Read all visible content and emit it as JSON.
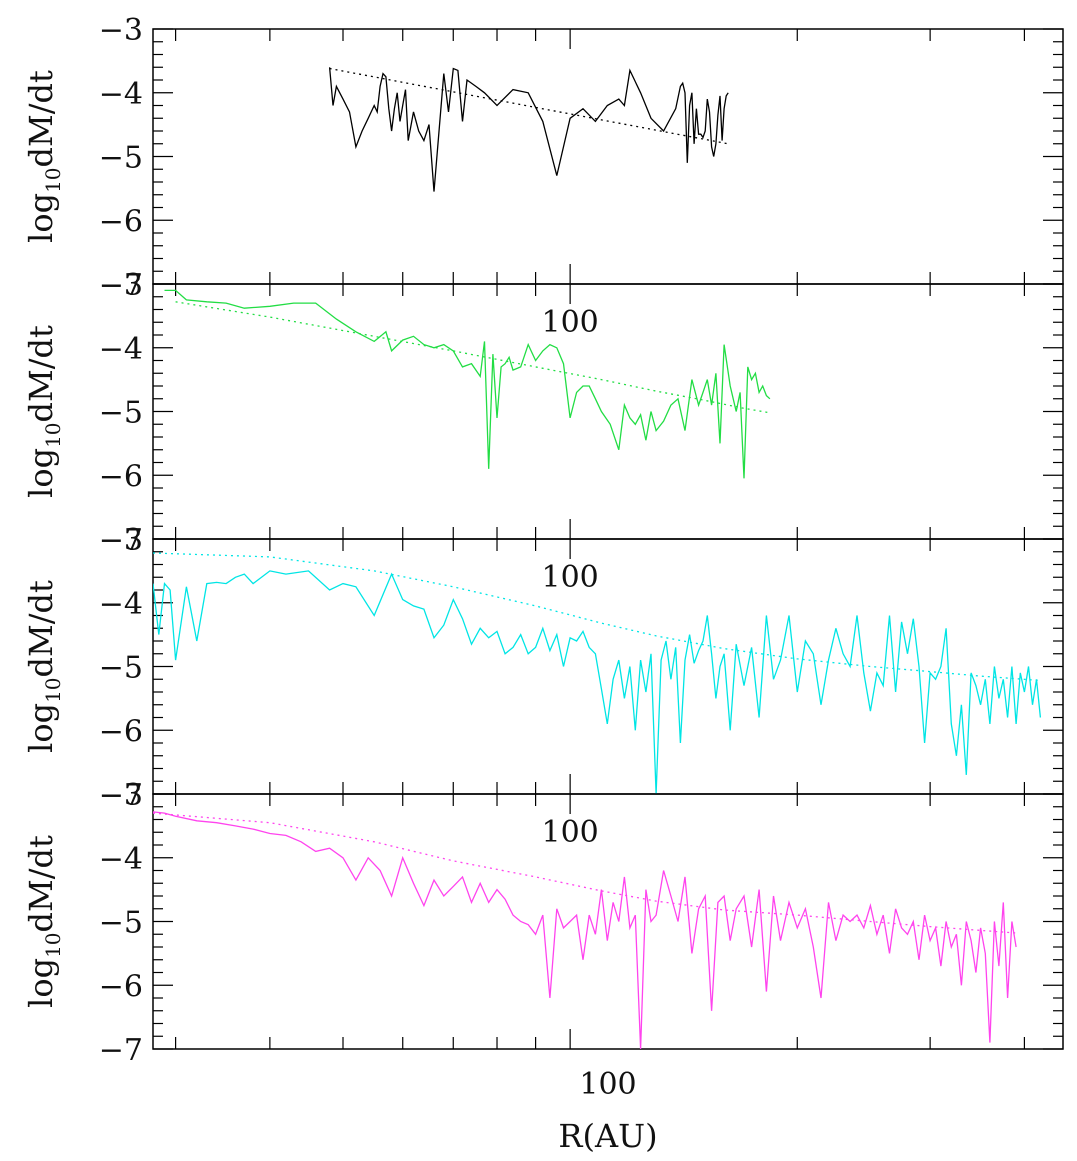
{
  "chart_data": {
    "type": "line",
    "layout": "4 stacked panels sharing a logarithmic x axis",
    "x_scale": "log",
    "xlim": [
      28,
      450
    ],
    "xlabel": "R(AU)",
    "x_tick_label": "100",
    "ylim": [
      -7,
      -3
    ],
    "y_ticks": [
      "−3",
      "−4",
      "−5",
      "−6",
      "−7"
    ],
    "ylabel": "log10dM/dt",
    "ylabel_parts": {
      "main": "log",
      "sub": "10",
      "rest": "dM/dt"
    },
    "panels": [
      {
        "color": "#000000",
        "data": {
          "x": [
            48,
            48.5,
            49,
            50,
            51,
            52,
            53,
            54,
            55,
            55.5,
            56,
            56.5,
            57,
            57.5,
            58,
            58.5,
            59,
            59.5,
            60,
            60.5,
            61,
            62,
            63,
            64,
            65,
            66,
            68,
            69,
            70,
            71,
            72,
            73,
            75,
            77,
            80,
            84,
            88,
            92,
            96,
            100,
            104,
            108,
            112,
            116,
            118,
            120,
            124,
            128,
            133,
            138,
            140,
            141,
            142,
            143,
            144,
            145,
            146,
            147,
            148,
            149,
            150,
            151,
            152,
            153,
            154,
            155,
            156,
            157,
            158,
            159,
            160,
            161,
            162
          ],
          "y": [
            -3.6,
            -4.2,
            -3.9,
            -4.1,
            -4.3,
            -4.85,
            -4.6,
            -4.4,
            -4.2,
            -4.3,
            -3.9,
            -3.7,
            -3.75,
            -4.25,
            -4.6,
            -4.25,
            -4.0,
            -4.45,
            -4.2,
            -3.95,
            -4.75,
            -4.3,
            -4.6,
            -4.75,
            -4.5,
            -5.55,
            -3.7,
            -4.3,
            -3.62,
            -3.65,
            -4.45,
            -3.8,
            -3.9,
            -4.0,
            -4.2,
            -3.95,
            -4.0,
            -4.45,
            -5.3,
            -4.4,
            -4.25,
            -4.45,
            -4.2,
            -4.1,
            -4.2,
            -3.65,
            -4.0,
            -4.4,
            -4.6,
            -4.25,
            -3.9,
            -3.85,
            -4.0,
            -5.1,
            -4.2,
            -4.0,
            -4.8,
            -4.25,
            -4.65,
            -4.65,
            -4.7,
            -4.6,
            -4.1,
            -4.3,
            -4.85,
            -5.0,
            -4.8,
            -4.35,
            -4.05,
            -4.75,
            -4.25,
            -4.05,
            -4.0
          ]
        },
        "fit": {
          "x": [
            48,
            162
          ],
          "y": [
            -3.62,
            -4.8
          ]
        }
      },
      {
        "color": "#22dd44",
        "data": {
          "x": [
            29,
            30,
            31,
            33,
            35,
            37,
            40,
            43,
            46,
            49,
            52,
            55,
            57,
            58,
            60,
            62,
            64,
            66,
            68,
            70,
            72,
            74,
            76,
            77,
            78,
            79,
            80,
            81,
            82,
            83,
            84,
            86,
            88,
            90,
            92,
            94,
            96,
            98,
            100,
            102,
            104,
            106,
            108,
            110,
            113,
            116,
            118,
            120,
            122,
            124,
            126,
            128,
            130,
            133,
            136,
            139,
            142,
            145,
            148,
            150,
            152,
            154,
            156,
            158,
            160,
            163,
            166,
            168,
            170,
            172,
            174,
            176,
            178,
            180,
            182,
            184
          ],
          "y": [
            -3.1,
            -3.1,
            -3.25,
            -3.28,
            -3.3,
            -3.38,
            -3.35,
            -3.3,
            -3.3,
            -3.55,
            -3.75,
            -3.9,
            -3.75,
            -4.05,
            -3.88,
            -3.82,
            -3.95,
            -4.0,
            -3.95,
            -4.05,
            -4.3,
            -4.25,
            -4.45,
            -3.9,
            -5.9,
            -4.1,
            -5.1,
            -4.3,
            -4.25,
            -4.15,
            -4.35,
            -4.3,
            -3.95,
            -4.2,
            -4.05,
            -3.95,
            -4.0,
            -4.25,
            -5.1,
            -4.7,
            -4.6,
            -4.6,
            -4.8,
            -5.0,
            -5.2,
            -5.6,
            -4.9,
            -5.1,
            -5.2,
            -5.05,
            -5.45,
            -5.0,
            -5.3,
            -5.15,
            -4.9,
            -4.8,
            -5.3,
            -4.5,
            -4.9,
            -4.7,
            -4.5,
            -4.9,
            -4.4,
            -5.5,
            -3.95,
            -4.6,
            -5.0,
            -4.7,
            -6.05,
            -4.3,
            -4.5,
            -4.4,
            -4.7,
            -4.6,
            -4.75,
            -4.8
          ],
          "y_override": []
        },
        "fit": {
          "x": [
            30,
            40,
            55,
            70,
            90,
            110,
            130,
            150,
            170,
            184
          ],
          "y": [
            -3.28,
            -3.52,
            -3.82,
            -4.05,
            -4.3,
            -4.5,
            -4.68,
            -4.82,
            -4.95,
            -5.02
          ]
        }
      },
      {
        "color": "#00e5e5",
        "data": {
          "x": [
            28,
            28.5,
            29,
            29.5,
            30,
            31,
            32,
            33,
            34,
            35,
            36,
            37,
            38,
            40,
            42,
            45,
            48,
            50,
            52,
            55,
            58,
            60,
            62,
            64,
            66,
            68,
            70,
            72,
            74,
            76,
            78,
            80,
            82,
            84,
            86,
            88,
            90,
            92,
            94,
            96,
            98,
            100,
            102,
            104,
            106,
            108,
            110,
            112,
            114,
            116,
            118,
            120,
            122,
            124,
            126,
            128,
            130,
            132,
            134,
            136,
            138,
            140,
            142,
            144,
            146,
            148,
            150,
            152,
            154,
            156,
            158,
            160,
            163,
            166,
            170,
            174,
            178,
            182,
            186,
            190,
            195,
            200,
            205,
            210,
            215,
            220,
            225,
            230,
            235,
            240,
            245,
            250,
            255,
            260,
            265,
            270,
            275,
            280,
            285,
            290,
            295,
            300,
            305,
            310,
            315,
            320,
            325,
            330,
            335,
            340,
            345,
            350,
            355,
            360,
            365,
            370,
            375,
            380,
            385,
            390,
            395,
            400,
            405,
            410,
            415,
            420
          ],
          "y": [
            -3.7,
            -4.5,
            -3.7,
            -3.8,
            -4.9,
            -3.75,
            -4.6,
            -3.7,
            -3.68,
            -3.7,
            -3.6,
            -3.55,
            -3.7,
            -3.5,
            -3.55,
            -3.5,
            -3.8,
            -3.7,
            -3.75,
            -4.2,
            -3.55,
            -3.95,
            -4.05,
            -4.1,
            -4.55,
            -4.35,
            -3.95,
            -4.25,
            -4.65,
            -4.4,
            -4.55,
            -4.45,
            -4.8,
            -4.7,
            -4.5,
            -4.8,
            -4.7,
            -4.4,
            -4.75,
            -4.5,
            -5.0,
            -4.55,
            -4.6,
            -4.45,
            -4.7,
            -4.8,
            -5.35,
            -5.9,
            -5.2,
            -4.9,
            -5.5,
            -5.0,
            -6.0,
            -4.9,
            -5.4,
            -4.8,
            -7.0,
            -4.9,
            -4.6,
            -5.2,
            -4.7,
            -6.2,
            -4.9,
            -4.5,
            -4.95,
            -4.75,
            -4.6,
            -4.2,
            -4.8,
            -5.5,
            -5.0,
            -4.8,
            -6.0,
            -4.65,
            -5.3,
            -4.7,
            -5.8,
            -4.2,
            -5.2,
            -4.9,
            -4.2,
            -5.4,
            -4.6,
            -4.8,
            -5.6,
            -4.9,
            -4.4,
            -4.8,
            -5.0,
            -4.2,
            -5.1,
            -5.7,
            -5.1,
            -5.3,
            -4.2,
            -5.4,
            -4.3,
            -4.8,
            -4.25,
            -5.0,
            -6.2,
            -5.1,
            -5.2,
            -5.0,
            -4.4,
            -5.9,
            -6.4,
            -5.6,
            -6.7,
            -5.1,
            -5.3,
            -5.6,
            -5.2,
            -5.9,
            -5.0,
            -5.5,
            -5.2,
            -5.8,
            -5.0,
            -5.9,
            -5.1,
            -5.4,
            -5.0,
            -5.6,
            -5.2,
            -5.8
          ],
          "y_override": []
        },
        "fit": {
          "x": [
            28,
            40,
            55,
            70,
            90,
            110,
            130,
            160,
            200,
            250,
            300,
            350,
            420
          ],
          "y": [
            -3.22,
            -3.28,
            -3.5,
            -3.75,
            -4.05,
            -4.32,
            -4.52,
            -4.72,
            -4.88,
            -5.0,
            -5.08,
            -5.15,
            -5.22
          ]
        }
      },
      {
        "color": "#ff44ee",
        "data": {
          "x": [
            28,
            29,
            30,
            32,
            34,
            36,
            38,
            40,
            42,
            44,
            46,
            48,
            50,
            52,
            54,
            56,
            58,
            60,
            62,
            64,
            66,
            68,
            70,
            72,
            74,
            76,
            78,
            80,
            82,
            84,
            86,
            88,
            90,
            92,
            94,
            96,
            98,
            100,
            102,
            104,
            106,
            108,
            110,
            112,
            114,
            116,
            118,
            120,
            122,
            124,
            126,
            128,
            130,
            133,
            136,
            139,
            142,
            145,
            148,
            151,
            154,
            157,
            160,
            163,
            166,
            170,
            174,
            178,
            182,
            186,
            190,
            195,
            200,
            205,
            210,
            215,
            220,
            225,
            230,
            235,
            240,
            245,
            250,
            255,
            260,
            265,
            270,
            275,
            280,
            285,
            290,
            295,
            300,
            305,
            310,
            315,
            320,
            325,
            330,
            335,
            340,
            345,
            350,
            355,
            360,
            365,
            370,
            375,
            380,
            385,
            390
          ],
          "y": [
            -3.28,
            -3.3,
            -3.35,
            -3.42,
            -3.45,
            -3.5,
            -3.55,
            -3.62,
            -3.65,
            -3.75,
            -3.9,
            -3.85,
            -4.0,
            -4.35,
            -4.0,
            -4.2,
            -4.6,
            -4.0,
            -4.4,
            -4.75,
            -4.35,
            -4.6,
            -4.45,
            -4.3,
            -4.7,
            -4.4,
            -4.7,
            -4.5,
            -4.65,
            -4.9,
            -5.0,
            -5.05,
            -5.2,
            -4.9,
            -6.2,
            -4.8,
            -5.1,
            -5.0,
            -4.9,
            -5.6,
            -4.9,
            -5.2,
            -4.5,
            -5.3,
            -4.7,
            -5.0,
            -4.3,
            -5.1,
            -4.9,
            -7.0,
            -4.5,
            -5.0,
            -4.9,
            -4.2,
            -4.6,
            -5.0,
            -4.3,
            -5.5,
            -4.8,
            -4.6,
            -6.4,
            -4.7,
            -4.6,
            -5.3,
            -4.8,
            -4.6,
            -5.4,
            -4.5,
            -6.1,
            -4.6,
            -5.3,
            -4.7,
            -5.1,
            -4.8,
            -5.4,
            -6.2,
            -4.7,
            -5.3,
            -4.9,
            -5.0,
            -4.9,
            -5.1,
            -4.75,
            -5.2,
            -4.9,
            -5.5,
            -4.8,
            -5.1,
            -5.2,
            -5.0,
            -5.6,
            -4.9,
            -5.3,
            -5.1,
            -5.7,
            -5.0,
            -5.4,
            -5.2,
            -6.0,
            -5.0,
            -5.3,
            -5.8,
            -5.1,
            -5.5,
            -6.9,
            -5.0,
            -5.7,
            -4.7,
            -6.2,
            -5.0,
            -5.4
          ],
          "y_override": []
        },
        "fit": {
          "x": [
            28,
            40,
            55,
            70,
            90,
            110,
            130,
            160,
            200,
            250,
            300,
            350,
            390
          ],
          "y": [
            -3.3,
            -3.45,
            -3.75,
            -4.05,
            -4.3,
            -4.52,
            -4.68,
            -4.82,
            -4.9,
            -5.0,
            -5.08,
            -5.14,
            -5.18
          ]
        }
      }
    ]
  }
}
